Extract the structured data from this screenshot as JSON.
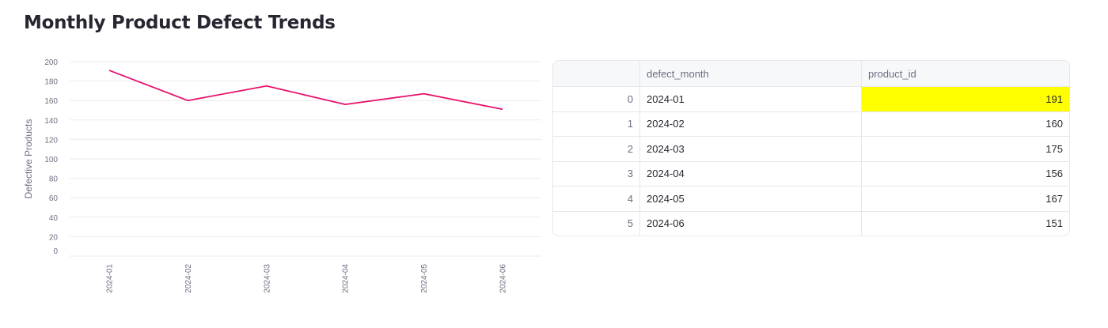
{
  "page": {
    "title": "Monthly Product Defect Trends"
  },
  "chart_data": {
    "type": "line",
    "title": "",
    "xlabel": "",
    "ylabel": "Defective Products",
    "categories": [
      "2024-01",
      "2024-02",
      "2024-03",
      "2024-04",
      "2024-05",
      "2024-06"
    ],
    "series": [
      {
        "values": [
          191,
          160,
          175,
          156,
          167,
          151
        ]
      }
    ],
    "ylim": [
      0,
      200
    ],
    "yticks": [
      0,
      20,
      40,
      60,
      80,
      100,
      120,
      140,
      160,
      180,
      200
    ],
    "grid": true,
    "line_color": "#e8106e"
  },
  "table": {
    "columns": [
      "",
      "defect_month",
      "product_id"
    ],
    "rows": [
      {
        "index": "0",
        "month": "2024-01",
        "product_id": "191"
      },
      {
        "index": "1",
        "month": "2024-02",
        "product_id": "160"
      },
      {
        "index": "2",
        "month": "2024-03",
        "product_id": "175"
      },
      {
        "index": "3",
        "month": "2024-04",
        "product_id": "156"
      },
      {
        "index": "4",
        "month": "2024-05",
        "product_id": "167"
      },
      {
        "index": "5",
        "month": "2024-06",
        "product_id": "151"
      }
    ],
    "highlight_color": "#ffff00"
  }
}
